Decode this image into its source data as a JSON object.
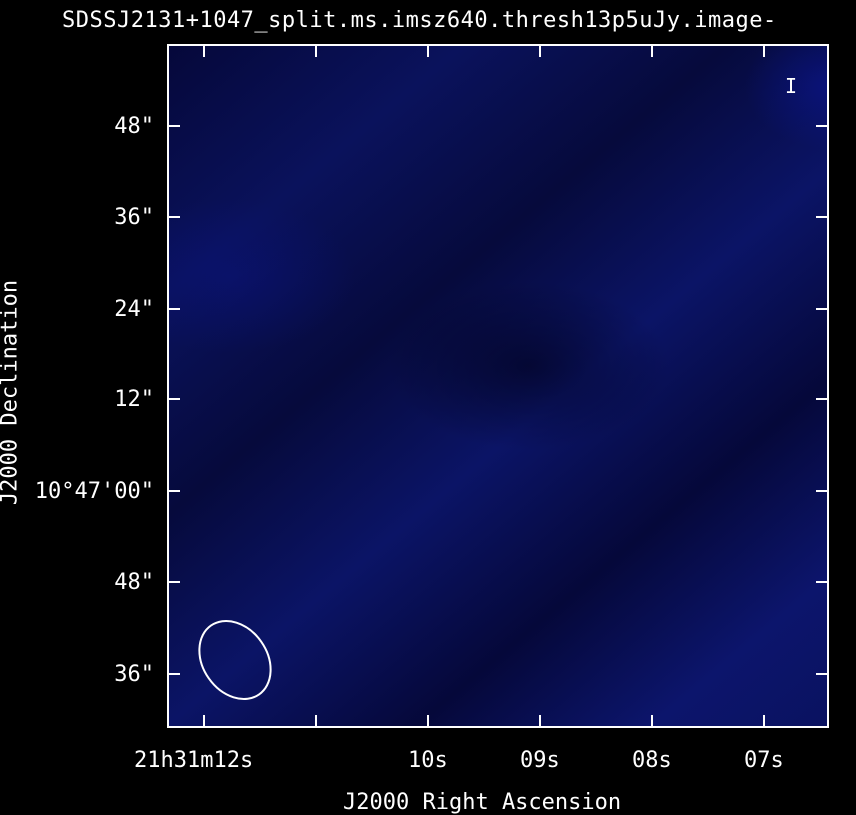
{
  "title": "SDSSJ2131+1047_split.ms.imsz640.thresh13p5uJy.image-",
  "stokes_label": "I",
  "axes": {
    "xlabel": "J2000 Right Ascension",
    "ylabel": "J2000 Declination",
    "y_ticks": [
      "48\"",
      "36\"",
      "24\"",
      "12\"",
      "10°47'00\"",
      "48\"",
      "36\""
    ],
    "x_ticks": [
      "21h31m12s",
      "10s",
      "09s",
      "08s",
      "07s"
    ]
  }
}
